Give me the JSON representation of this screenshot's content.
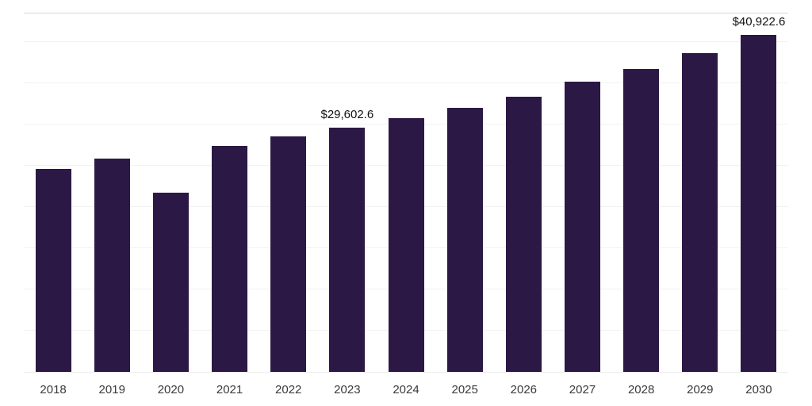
{
  "chart_data": {
    "type": "bar",
    "title": "",
    "xlabel": "",
    "ylabel": "",
    "categories": [
      "2018",
      "2019",
      "2020",
      "2021",
      "2022",
      "2023",
      "2024",
      "2025",
      "2026",
      "2027",
      "2028",
      "2029",
      "2030"
    ],
    "values": [
      24600,
      25900,
      21800,
      27400,
      28600,
      29602.6,
      30800,
      32100,
      33400,
      35200,
      36800,
      38700,
      40922.6
    ],
    "annotations": [
      {
        "category": "2023",
        "label": "$29,602.6"
      },
      {
        "category": "2030",
        "label": "$40,922.6"
      }
    ],
    "ylim": [
      0,
      43500
    ],
    "gridline_step": 5000,
    "grid": true,
    "legend": "none",
    "bar_color": "#2c1844",
    "background_color": "#ffffff",
    "gridline_color": "#f2f2f2",
    "top_border_color": "#d8d8d8",
    "label_color": "#111111",
    "tick_label_color": "#3a3a3a"
  }
}
